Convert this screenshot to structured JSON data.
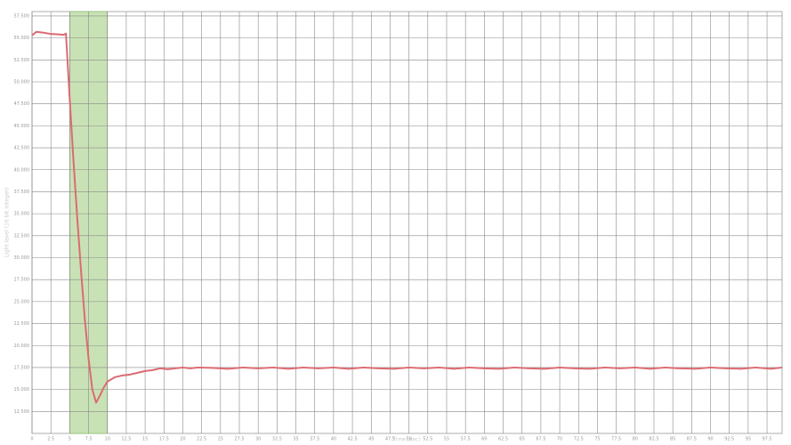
{
  "chart_data": {
    "type": "line",
    "x_label": "Time (sec)",
    "y_label": "Light level (16 bit integer)",
    "xlim": [
      0,
      99.5
    ],
    "ylim": [
      10000,
      58000
    ],
    "xticks": [
      0,
      2.5,
      5,
      7.5,
      10,
      12.5,
      15,
      17.5,
      20,
      22.5,
      25,
      27.5,
      30,
      32.5,
      35,
      37.5,
      40,
      42.5,
      45,
      47.5,
      50,
      52.5,
      55,
      57.5,
      60,
      62.5,
      65,
      67.5,
      70,
      72.5,
      75,
      77.5,
      80,
      82.5,
      85,
      87.5,
      90,
      92.5,
      95,
      97.5
    ],
    "yticks": [
      {
        "value": 12500,
        "label": "12.500"
      },
      {
        "value": 15000,
        "label": "15.000"
      },
      {
        "value": 17500,
        "label": "17.500"
      },
      {
        "value": 20000,
        "label": "20.000"
      },
      {
        "value": 22500,
        "label": "22.500"
      },
      {
        "value": 25000,
        "label": "25.000"
      },
      {
        "value": 27500,
        "label": "27.500"
      },
      {
        "value": 30000,
        "label": "30.000"
      },
      {
        "value": 32500,
        "label": "32.500"
      },
      {
        "value": 35000,
        "label": "35.000"
      },
      {
        "value": 37500,
        "label": "37.500"
      },
      {
        "value": 40000,
        "label": "40.000"
      },
      {
        "value": 42500,
        "label": "42.500"
      },
      {
        "value": 45000,
        "label": "45.000"
      },
      {
        "value": 47500,
        "label": "47.500"
      },
      {
        "value": 50000,
        "label": "50.000"
      },
      {
        "value": 52500,
        "label": "52.500"
      },
      {
        "value": 55000,
        "label": "55.000"
      },
      {
        "value": 57500,
        "label": "57.500"
      }
    ],
    "grid": true,
    "highlight": [
      5,
      10
    ],
    "highlight_color": "#c9e2b5",
    "x": [
      0,
      0.6,
      1.5,
      2.5,
      3.5,
      4.2,
      4.5,
      5,
      5.5,
      6,
      6.5,
      7,
      7.5,
      8,
      8.5,
      9,
      9.5,
      10,
      11,
      12,
      13,
      14,
      15,
      16,
      17,
      18,
      19,
      20,
      21,
      22,
      24,
      26,
      28,
      30,
      32,
      34,
      36,
      38,
      40,
      42,
      44,
      46,
      48,
      50,
      52,
      54,
      56,
      58,
      60,
      62,
      64,
      66,
      68,
      70,
      72,
      74,
      76,
      78,
      80,
      82,
      84,
      86,
      88,
      90,
      92,
      94,
      96,
      98,
      99.5
    ],
    "series": [
      {
        "name": "Light level",
        "color": "#dc6a72",
        "values": [
          55300,
          55700,
          55600,
          55450,
          55400,
          55350,
          55500,
          48000,
          41000,
          34500,
          28500,
          23000,
          18500,
          15000,
          13500,
          14300,
          15200,
          15900,
          16400,
          16600,
          16700,
          16900,
          17100,
          17200,
          17400,
          17300,
          17400,
          17500,
          17400,
          17500,
          17450,
          17350,
          17500,
          17400,
          17500,
          17350,
          17500,
          17400,
          17500,
          17350,
          17500,
          17400,
          17350,
          17500,
          17400,
          17500,
          17350,
          17500,
          17400,
          17350,
          17500,
          17400,
          17350,
          17500,
          17400,
          17350,
          17500,
          17400,
          17500,
          17350,
          17500,
          17400,
          17350,
          17500,
          17400,
          17350,
          17500,
          17350,
          17500
        ]
      }
    ]
  }
}
